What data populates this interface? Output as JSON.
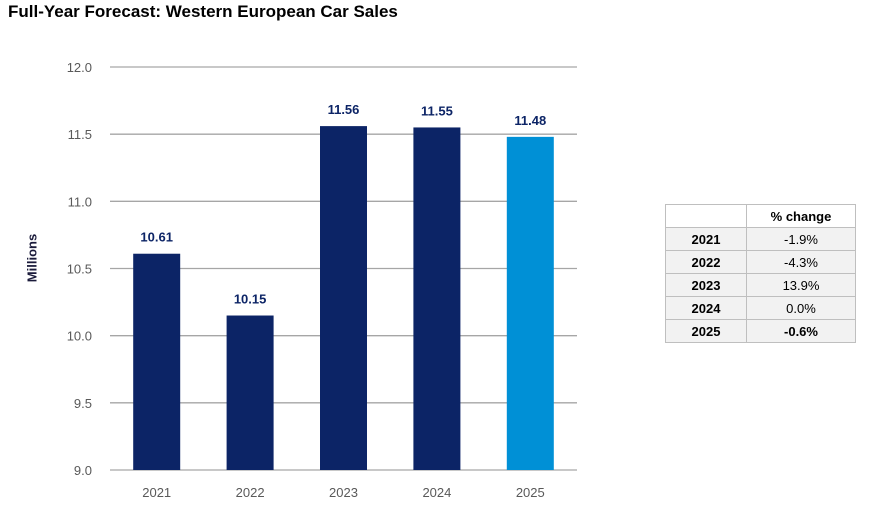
{
  "title": "Full-Year Forecast: Western European Car Sales",
  "chart_data": {
    "type": "bar",
    "title": "Full-Year Forecast: Western European Car Sales",
    "xlabel": "",
    "ylabel": "Millions",
    "categories": [
      "2021",
      "2022",
      "2023",
      "2024",
      "2025"
    ],
    "values": [
      10.61,
      10.15,
      11.56,
      11.55,
      11.48
    ],
    "data_labels": [
      "10.61",
      "10.15",
      "11.56",
      "11.55",
      "11.48"
    ],
    "bar_colors": [
      "#0c2466",
      "#0c2466",
      "#0c2466",
      "#0c2466",
      "#0090d6"
    ],
    "ylim": [
      9.0,
      12.0
    ],
    "yticks": [
      "9.0",
      "9.5",
      "10.0",
      "10.5",
      "11.0",
      "11.5",
      "12.0"
    ],
    "grid": true,
    "legend": "none"
  },
  "table": {
    "header": "% change",
    "rows": [
      {
        "year": "2021",
        "change": "-1.9%"
      },
      {
        "year": "2022",
        "change": "-4.3%"
      },
      {
        "year": "2023",
        "change": "13.9%"
      },
      {
        "year": "2024",
        "change": "0.0%"
      },
      {
        "year": "2025",
        "change": "-0.6%"
      }
    ]
  }
}
